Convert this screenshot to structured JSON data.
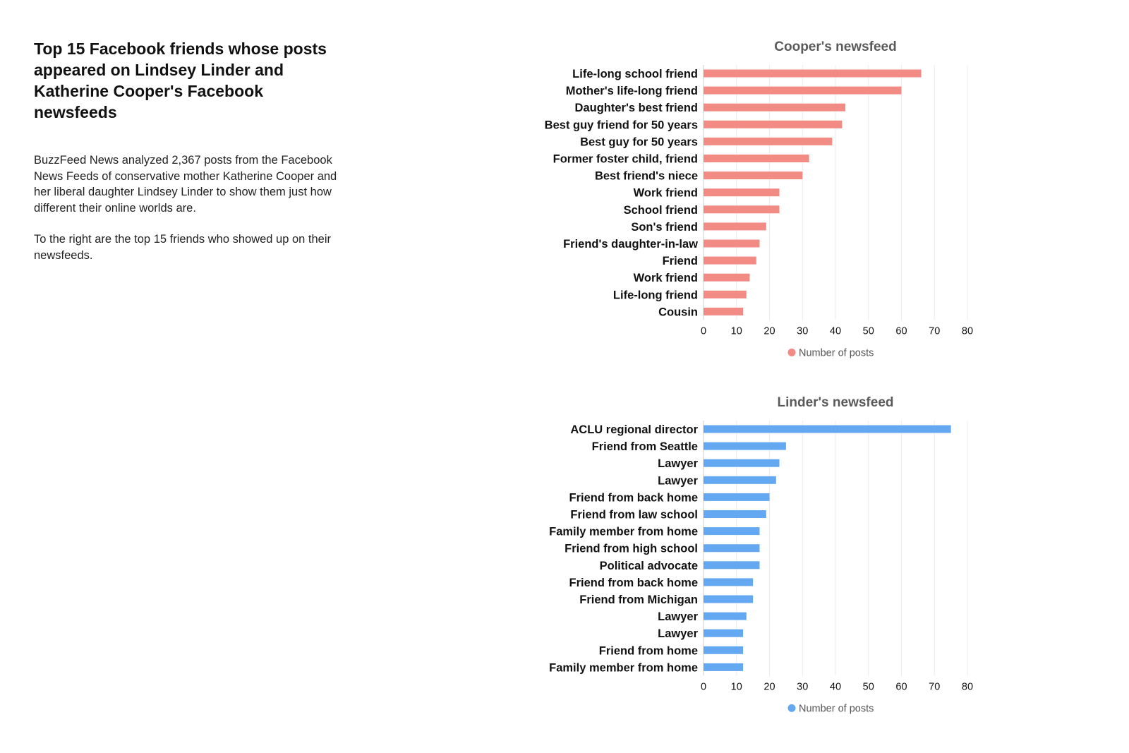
{
  "intro": {
    "title": "Top 15 Facebook friends whose posts appeared on Lindsey Linder and Katherine Cooper's Facebook newsfeeds",
    "paragraph1": "BuzzFeed News analyzed 2,367 posts from the Facebook News Feeds of conservative mother Katherine Cooper and her liberal daughter Lindsey Linder to show them just how different their online worlds are.",
    "paragraph2": "To the right are the top 15 friends who showed up on their newsfeeds."
  },
  "chart_data": [
    {
      "type": "bar",
      "orientation": "horizontal",
      "title": "Cooper's newsfeed",
      "categories": [
        "Life-long school friend",
        "Mother's life-long friend",
        "Daughter's best friend",
        "Best guy friend for 50 years",
        "Best guy for 50 years",
        "Former foster child, friend",
        "Best friend's niece",
        "Work friend",
        "School friend",
        "Son's friend",
        "Friend's daughter-in-law",
        "Friend",
        "Work friend",
        "Life-long friend",
        "Cousin"
      ],
      "series": [
        {
          "name": "Number of posts",
          "values": [
            66,
            60,
            43,
            42,
            39,
            32,
            30,
            23,
            23,
            19,
            17,
            16,
            14,
            13,
            12
          ],
          "color": "#f28b84"
        }
      ],
      "xlim": [
        0,
        80
      ],
      "xticks": [
        0,
        10,
        20,
        30,
        40,
        50,
        60,
        70,
        80
      ],
      "grid": true,
      "legend": "bottom"
    },
    {
      "type": "bar",
      "orientation": "horizontal",
      "title": "Linder's newsfeed",
      "categories": [
        "ACLU regional director",
        "Friend from Seattle",
        "Lawyer",
        "Lawyer",
        "Friend from back home",
        "Friend from law school",
        "Family member from home",
        "Friend from high school",
        "Political advocate",
        "Friend from back home",
        "Friend from Michigan",
        "Lawyer",
        "Lawyer",
        "Friend from home",
        "Family member from home"
      ],
      "series": [
        {
          "name": "Number of posts",
          "values": [
            75,
            25,
            23,
            22,
            20,
            19,
            17,
            17,
            17,
            15,
            15,
            13,
            12,
            12,
            12
          ],
          "color": "#63a8f0"
        }
      ],
      "xlim": [
        0,
        80
      ],
      "xticks": [
        0,
        10,
        20,
        30,
        40,
        50,
        60,
        70,
        80
      ],
      "grid": true,
      "legend": "bottom"
    }
  ]
}
